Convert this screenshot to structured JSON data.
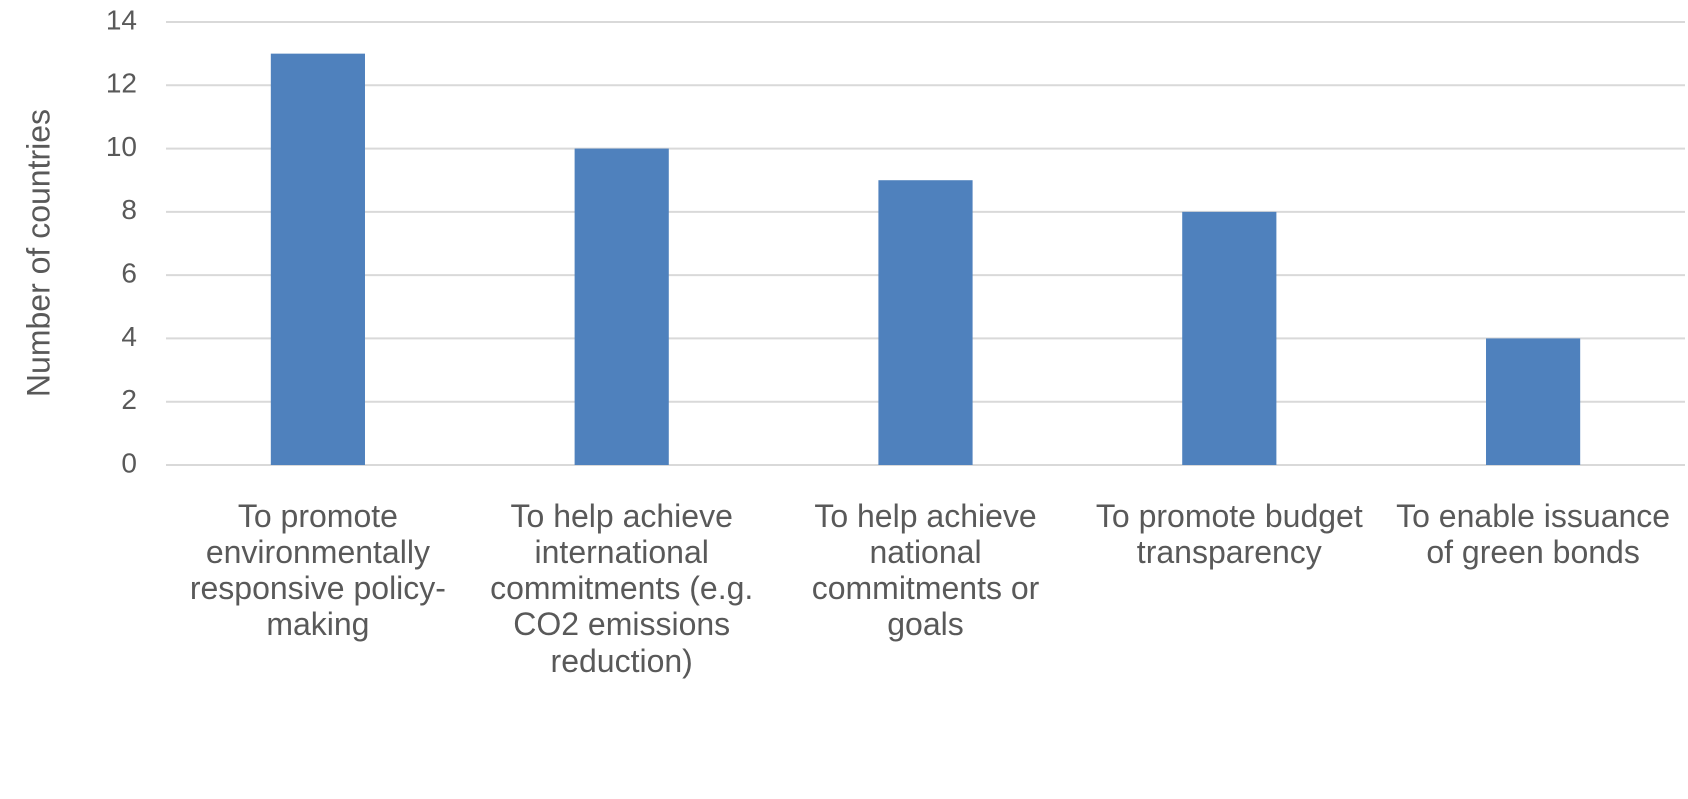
{
  "chart_data": {
    "type": "bar",
    "y_label": "Number of countries",
    "categories": [
      "To promote environmentally responsive policy-making",
      "To help achieve international commitments (e.g. CO2 emissions reduction)",
      "To help achieve national commitments or goals",
      "To promote budget transparency",
      "To enable issuance of green bonds"
    ],
    "values": [
      13,
      10,
      9,
      8,
      4
    ],
    "color": "#4f81bd",
    "ylim": [
      0,
      14
    ],
    "yticks": [
      0,
      2,
      4,
      6,
      8,
      10,
      12,
      14
    ],
    "grid": true
  }
}
